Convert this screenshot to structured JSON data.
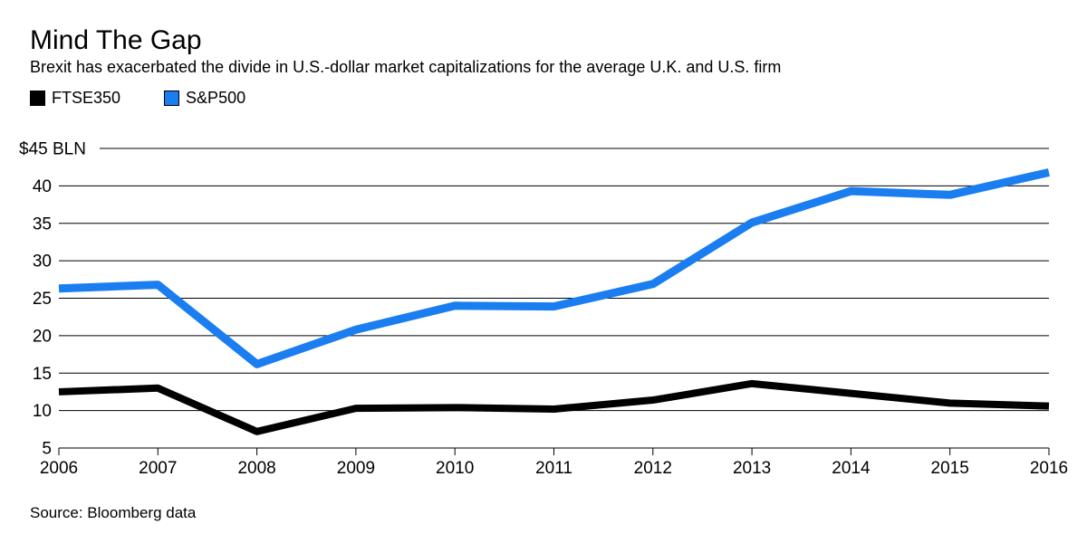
{
  "header": {
    "title": "Mind The Gap",
    "subtitle": "Brexit has exacerbated the divide in U.S.-dollar market capitalizations for the average U.K. and U.S. firm"
  },
  "legend": {
    "items": [
      {
        "label": "FTSE350",
        "color": "#000000"
      },
      {
        "label": "S&P500",
        "color": "#1a7ef0"
      }
    ]
  },
  "source": "Source: Bloomberg data",
  "colors": {
    "ftse350": "#000000",
    "sp500": "#1a7ef0",
    "grid": "#000000",
    "text": "#000000"
  },
  "chart_data": {
    "type": "line",
    "x": [
      2006,
      2007,
      2008,
      2009,
      2010,
      2011,
      2012,
      2013,
      2014,
      2015,
      2016
    ],
    "series": [
      {
        "name": "FTSE350",
        "color": "#000000",
        "width": 8,
        "values": [
          12.5,
          13.0,
          7.2,
          10.3,
          10.4,
          10.2,
          11.4,
          13.6,
          12.3,
          11.0,
          10.6
        ]
      },
      {
        "name": "S&P500",
        "color": "#1a7ef0",
        "width": 9,
        "values": [
          26.3,
          26.8,
          16.2,
          20.8,
          24.0,
          23.9,
          26.9,
          35.1,
          39.3,
          38.8,
          41.8
        ]
      }
    ],
    "title": "Mind The Gap",
    "subtitle": "Brexit has exacerbated the divide in U.S.-dollar market capitalizations for the average U.K. and U.S. firm",
    "xlabel": "",
    "ylabel": "",
    "y_top_label": "$45 BLN",
    "yticks": [
      5,
      10,
      15,
      20,
      25,
      30,
      35,
      40
    ],
    "ytick_top_value": 45,
    "ylim": [
      5,
      45
    ],
    "xlim": [
      2006,
      2016
    ],
    "grid": "horizontal",
    "legend_position": "top-left",
    "source": "Source: Bloomberg data"
  }
}
